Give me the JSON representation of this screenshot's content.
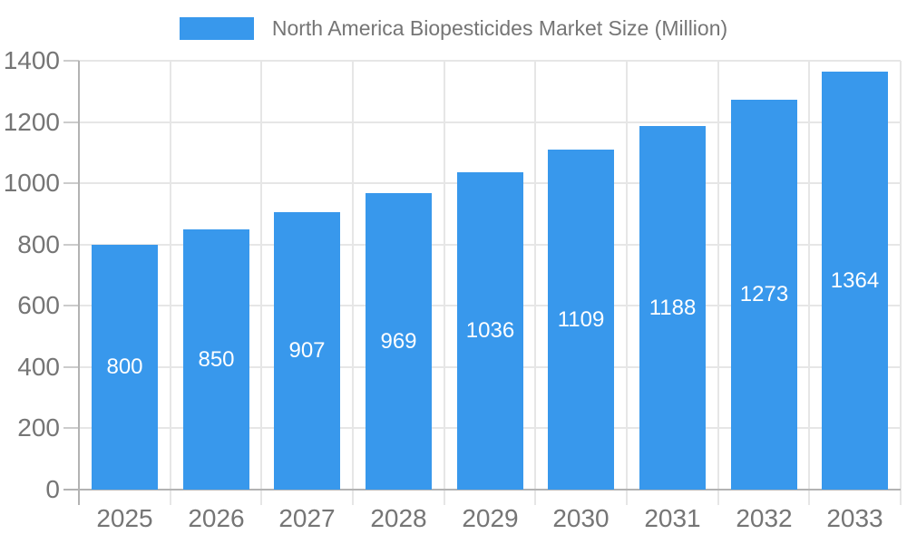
{
  "legend": {
    "label": "North America Biopesticides Market Size (Million)"
  },
  "chart_data": {
    "type": "bar",
    "title": "North America Biopesticides Market Size (Million)",
    "categories": [
      "2025",
      "2026",
      "2027",
      "2028",
      "2029",
      "2030",
      "2031",
      "2032",
      "2033"
    ],
    "values": [
      800,
      850,
      907,
      969,
      1036,
      1109,
      1188,
      1273,
      1364
    ],
    "xlabel": "",
    "ylabel": "",
    "ylim": [
      0,
      1400
    ],
    "yticks": [
      0,
      200,
      400,
      600,
      800,
      1000,
      1200,
      1400
    ],
    "grid": true,
    "legend_position": "top-center",
    "value_labels": "inside-center",
    "colors": {
      "bar": "#3898EC",
      "grid": "#E6E6E6",
      "axis": "#B3B3B3",
      "tick": "#CCCCCC",
      "axis_label": "#757575",
      "value_label": "#FFFFFF",
      "background": "#FFFFFF"
    }
  }
}
